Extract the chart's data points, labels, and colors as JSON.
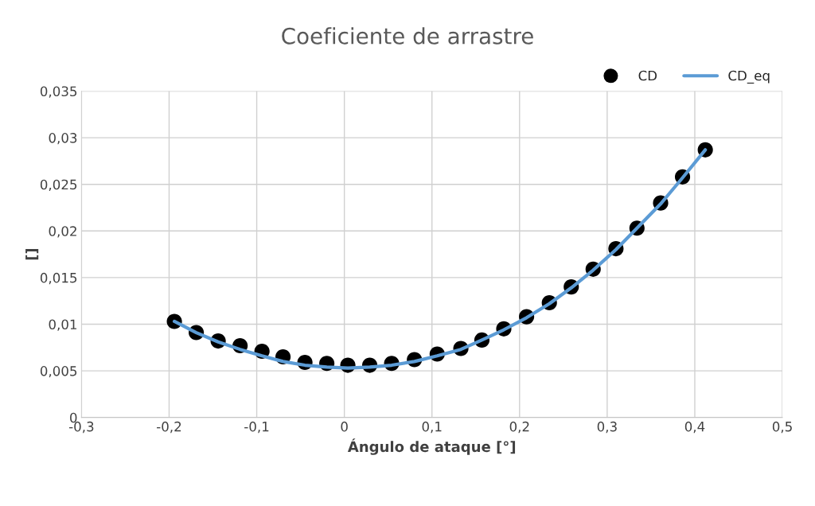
{
  "chart_data": {
    "type": "scatter",
    "title": "Coeficiente de arrastre",
    "xlabel": "Ángulo de ataque [°]",
    "ylabel": "[]",
    "x": [
      -0.194,
      -0.169,
      -0.144,
      -0.119,
      -0.094,
      -0.07,
      -0.045,
      -0.02,
      0.004,
      0.029,
      0.054,
      0.08,
      0.106,
      0.133,
      0.157,
      0.182,
      0.208,
      0.234,
      0.259,
      0.284,
      0.31,
      0.334,
      0.361,
      0.386,
      0.412
    ],
    "series": [
      {
        "name": "CD",
        "marker": "circle",
        "color": "#000000",
        "values": [
          0.0103,
          0.0091,
          0.0082,
          0.0077,
          0.0071,
          0.0065,
          0.0059,
          0.0058,
          0.0056,
          0.0056,
          0.0058,
          0.0062,
          0.0068,
          0.0074,
          0.0083,
          0.0095,
          0.0108,
          0.0123,
          0.014,
          0.0159,
          0.0181,
          0.0203,
          0.023,
          0.0258,
          0.0287
        ]
      },
      {
        "name": "CD_eq",
        "type": "line",
        "marker": "none",
        "line_style": "solid",
        "color": "#5b9bd5",
        "values": [
          0.0103,
          0.0091,
          0.0081,
          0.0073,
          0.0066,
          0.006,
          0.0056,
          0.0054,
          0.0053,
          0.0054,
          0.0056,
          0.006,
          0.0066,
          0.0073,
          0.0083,
          0.0094,
          0.0107,
          0.0122,
          0.0139,
          0.0158,
          0.018,
          0.0203,
          0.0229,
          0.0257,
          0.0287
        ]
      }
    ],
    "xlim": [
      -0.3,
      0.5
    ],
    "ylim": [
      0,
      0.035
    ],
    "xticks": [
      {
        "value": -0.3,
        "label": "-0,3"
      },
      {
        "value": -0.2,
        "label": "-0,2"
      },
      {
        "value": -0.1,
        "label": "-0,1"
      },
      0,
      {
        "value": 0.1,
        "label": "0,1"
      },
      {
        "value": 0.2,
        "label": "0,2"
      },
      {
        "value": 0.3,
        "label": "0,3"
      },
      {
        "value": 0.4,
        "label": "0,4"
      },
      {
        "value": 0.5,
        "label": "0,5"
      }
    ],
    "yticks": [
      0,
      {
        "value": 0.005,
        "label": "0,005"
      },
      {
        "value": 0.01,
        "label": "0,01"
      },
      {
        "value": 0.015,
        "label": "0,015"
      },
      {
        "value": 0.02,
        "label": "0,02"
      },
      {
        "value": 0.025,
        "label": "0,025"
      },
      {
        "value": 0.03,
        "label": "0,03"
      },
      {
        "value": 0.035,
        "label": "0,035"
      }
    ],
    "grid": true,
    "legend": "top right"
  }
}
